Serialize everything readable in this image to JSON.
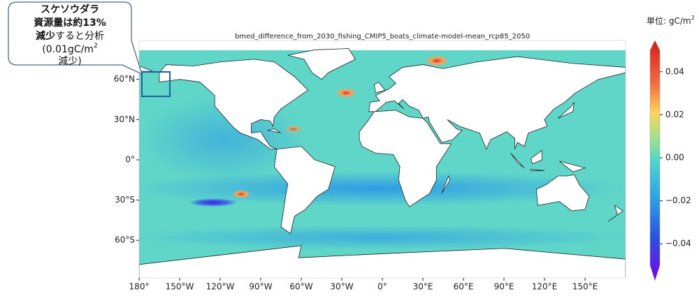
{
  "callout": {
    "line1": "スケソウダラ",
    "line2": "資源量は約13%",
    "line3_bold": "減少",
    "line3": "すると分析",
    "line4": "(0.01gC/m",
    "line4_sup": "2",
    "line5": "減少)"
  },
  "map": {
    "title": "bmed_difference_from_2030_fishing_CMIP5_boats_climate-model-mean_rcp85_2050",
    "unit": "単位: gC/m",
    "unit_sup": "2",
    "lonlim": [
      -180,
      180
    ],
    "latlim": [
      -88,
      89
    ],
    "lonticks": [
      {
        "value": -180,
        "label": "180°"
      },
      {
        "value": -150,
        "label": "150°W"
      },
      {
        "value": -120,
        "label": "120°W"
      },
      {
        "value": -90,
        "label": "90°W"
      },
      {
        "value": -60,
        "label": "60°W"
      },
      {
        "value": -30,
        "label": "30°W"
      },
      {
        "value": 0,
        "label": "0°"
      },
      {
        "value": 30,
        "label": "30°E"
      },
      {
        "value": 60,
        "label": "60°E"
      },
      {
        "value": 90,
        "label": "90°E"
      },
      {
        "value": 120,
        "label": "120°E"
      },
      {
        "value": 150,
        "label": "150°E"
      }
    ],
    "latticks": [
      {
        "value": 60,
        "label": "60°N"
      },
      {
        "value": 30,
        "label": "30°N"
      },
      {
        "value": 0,
        "label": "0°"
      },
      {
        "value": -30,
        "label": "30°S"
      },
      {
        "value": -60,
        "label": "60°S"
      }
    ],
    "colorbar": {
      "lim": [
        -0.05,
        0.05
      ],
      "ticks": [
        0.04,
        0.02,
        {
          "value": 0,
          "label": "0.00"
        },
        {
          "value": -0.02,
          "label": "−0.02"
        },
        {
          "value": -0.04,
          "label": "−0.04"
        }
      ]
    }
  }
}
